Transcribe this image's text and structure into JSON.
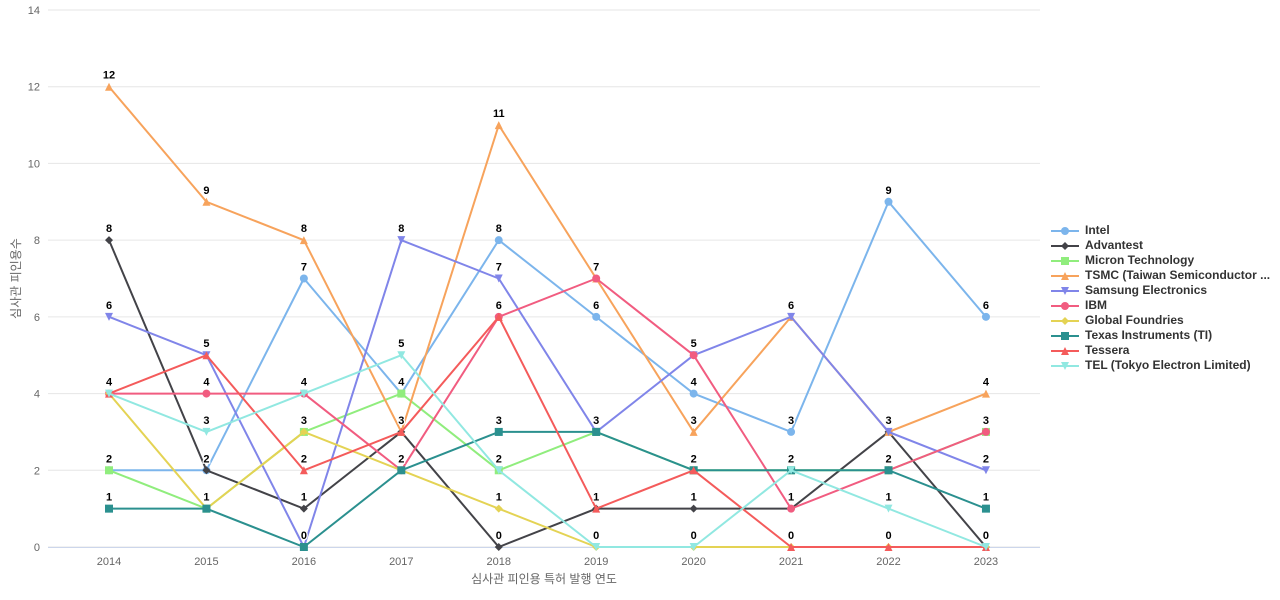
{
  "chart_data": {
    "type": "line",
    "title": "",
    "xlabel": "심사관 피인용 특허 발행 연도",
    "ylabel": "심사관 피인용수",
    "x": [
      2014,
      2015,
      2016,
      2017,
      2018,
      2019,
      2020,
      2021,
      2022,
      2023
    ],
    "ylim": [
      0,
      14
    ],
    "yticks": [
      0,
      2,
      4,
      6,
      8,
      10,
      12,
      14
    ],
    "grid": true,
    "legend_position": "right",
    "grid_color": "#e6e6e6",
    "xaxis_line_color": "#ccd6eb",
    "series": [
      {
        "name": "Intel",
        "color": "#7cb5ec",
        "marker": "circle",
        "values": [
          2,
          2,
          7,
          4,
          8,
          6,
          4,
          3,
          9,
          6
        ]
      },
      {
        "name": "Advantest",
        "color": "#434348",
        "marker": "diamond",
        "values": [
          8,
          2,
          1,
          3,
          0,
          1,
          1,
          1,
          3,
          0
        ]
      },
      {
        "name": "Micron Technology",
        "color": "#90ed7d",
        "marker": "square",
        "values": [
          2,
          1,
          3,
          4,
          2,
          3,
          2,
          2,
          2,
          3
        ]
      },
      {
        "name": "TSMC (Taiwan Semiconductor ...",
        "color": "#f7a35c",
        "marker": "triangle",
        "values": [
          12,
          9,
          8,
          3,
          11,
          7,
          3,
          6,
          3,
          4
        ]
      },
      {
        "name": "Samsung Electronics",
        "color": "#8085e9",
        "marker": "triangle-down",
        "values": [
          6,
          5,
          0,
          8,
          7,
          3,
          5,
          6,
          3,
          2
        ]
      },
      {
        "name": "IBM",
        "color": "#f15c80",
        "marker": "circle",
        "values": [
          4,
          4,
          4,
          2,
          6,
          7,
          5,
          1,
          2,
          3
        ]
      },
      {
        "name": "Global Foundries",
        "color": "#e4d354",
        "marker": "diamond",
        "values": [
          4,
          1,
          3,
          2,
          1,
          0,
          0,
          0,
          0,
          0
        ]
      },
      {
        "name": "Texas Instruments (TI)",
        "color": "#2b908f",
        "marker": "square",
        "values": [
          1,
          1,
          0,
          2,
          3,
          3,
          2,
          2,
          2,
          1
        ]
      },
      {
        "name": "Tessera",
        "color": "#f45b5b",
        "marker": "triangle",
        "values": [
          4,
          5,
          2,
          3,
          6,
          1,
          2,
          0,
          0,
          0
        ]
      },
      {
        "name": "TEL (Tokyo Electron Limited)",
        "color": "#91e8e1",
        "marker": "triangle-down",
        "values": [
          4,
          3,
          4,
          5,
          2,
          0,
          0,
          2,
          1,
          0
        ]
      }
    ]
  }
}
